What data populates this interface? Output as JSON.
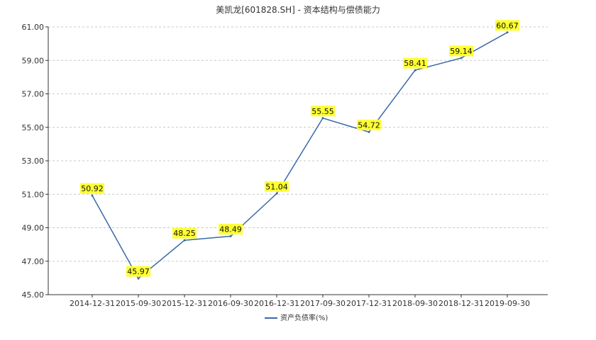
{
  "chart_data": {
    "type": "line",
    "title": "美凯龙[601828.SH] - 资本结构与偿债能力",
    "xlabel": "",
    "ylabel": "",
    "categories": [
      "2014-12-31",
      "2015-09-30",
      "2015-12-31",
      "2016-09-30",
      "2016-12-31",
      "2017-09-30",
      "2017-12-31",
      "2018-09-30",
      "2018-12-31",
      "2019-09-30"
    ],
    "series": [
      {
        "name": "资产负债率(%)",
        "values": [
          50.92,
          45.97,
          48.25,
          48.49,
          51.04,
          55.55,
          54.72,
          58.41,
          59.14,
          60.67
        ],
        "labels": [
          "50.92",
          "45.97",
          "48.25",
          "48.49",
          "51.04",
          "55.55",
          "54.72",
          "58.41",
          "59.14",
          "60.67"
        ]
      }
    ],
    "ylim": [
      45.0,
      61.0
    ],
    "yticks": [
      "45.00",
      "47.00",
      "49.00",
      "51.00",
      "53.00",
      "55.00",
      "57.00",
      "59.00",
      "61.00"
    ],
    "grid": true,
    "legend_position": "bottom-center",
    "colors": {
      "line": "#3a6aa8",
      "label_bg": "#ffff33",
      "grid": "#c8c8c8",
      "axis": "#333333"
    }
  }
}
